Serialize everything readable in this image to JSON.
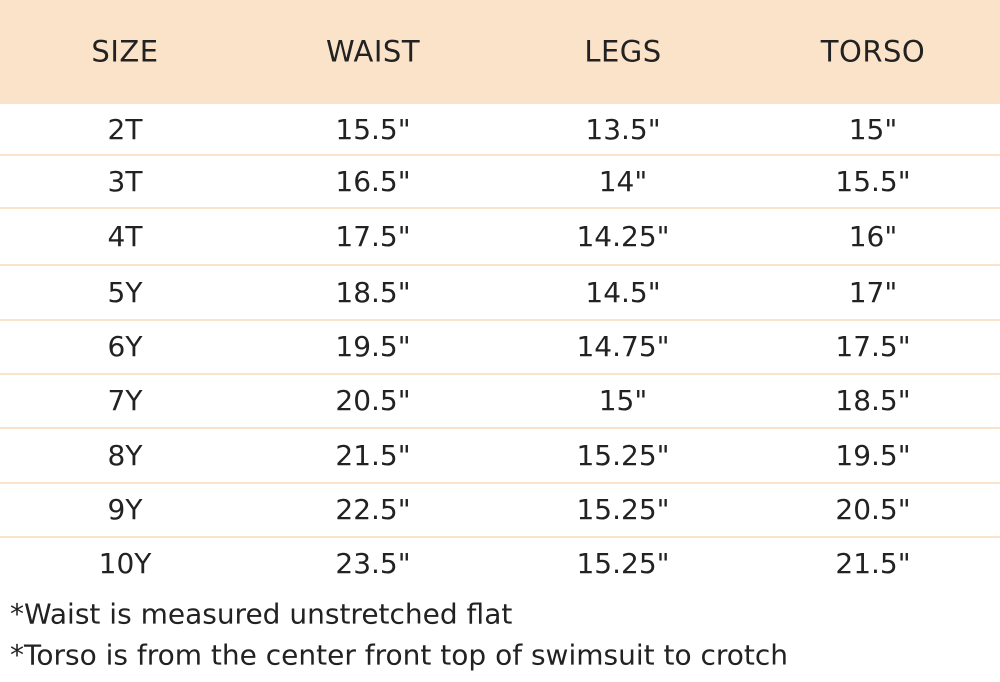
{
  "table": {
    "header": [
      "SIZE",
      "WAIST",
      "LEGS",
      "TORSO"
    ],
    "rows": [
      [
        "2T",
        "15.5\"",
        "13.5\"",
        "15\""
      ],
      [
        "3T",
        "16.5\"",
        "14\"",
        "15.5\""
      ],
      [
        "4T",
        "17.5\"",
        "14.25\"",
        "16\""
      ],
      [
        "5Y",
        "18.5\"",
        "14.5\"",
        "17\""
      ],
      [
        "6Y",
        "19.5\"",
        "14.75\"",
        "17.5\""
      ],
      [
        "7Y",
        "20.5\"",
        "15\"",
        "18.5\""
      ],
      [
        "8Y",
        "21.5\"",
        "15.25\"",
        "19.5\""
      ],
      [
        "9Y",
        "22.5\"",
        "15.25\"",
        "20.5\""
      ],
      [
        "10Y",
        "23.5\"",
        "15.25\"",
        "21.5\""
      ]
    ]
  },
  "notes": [
    "*Waist is measured unstretched flat",
    "*Torso is from the center front top of swimsuit to crotch"
  ]
}
